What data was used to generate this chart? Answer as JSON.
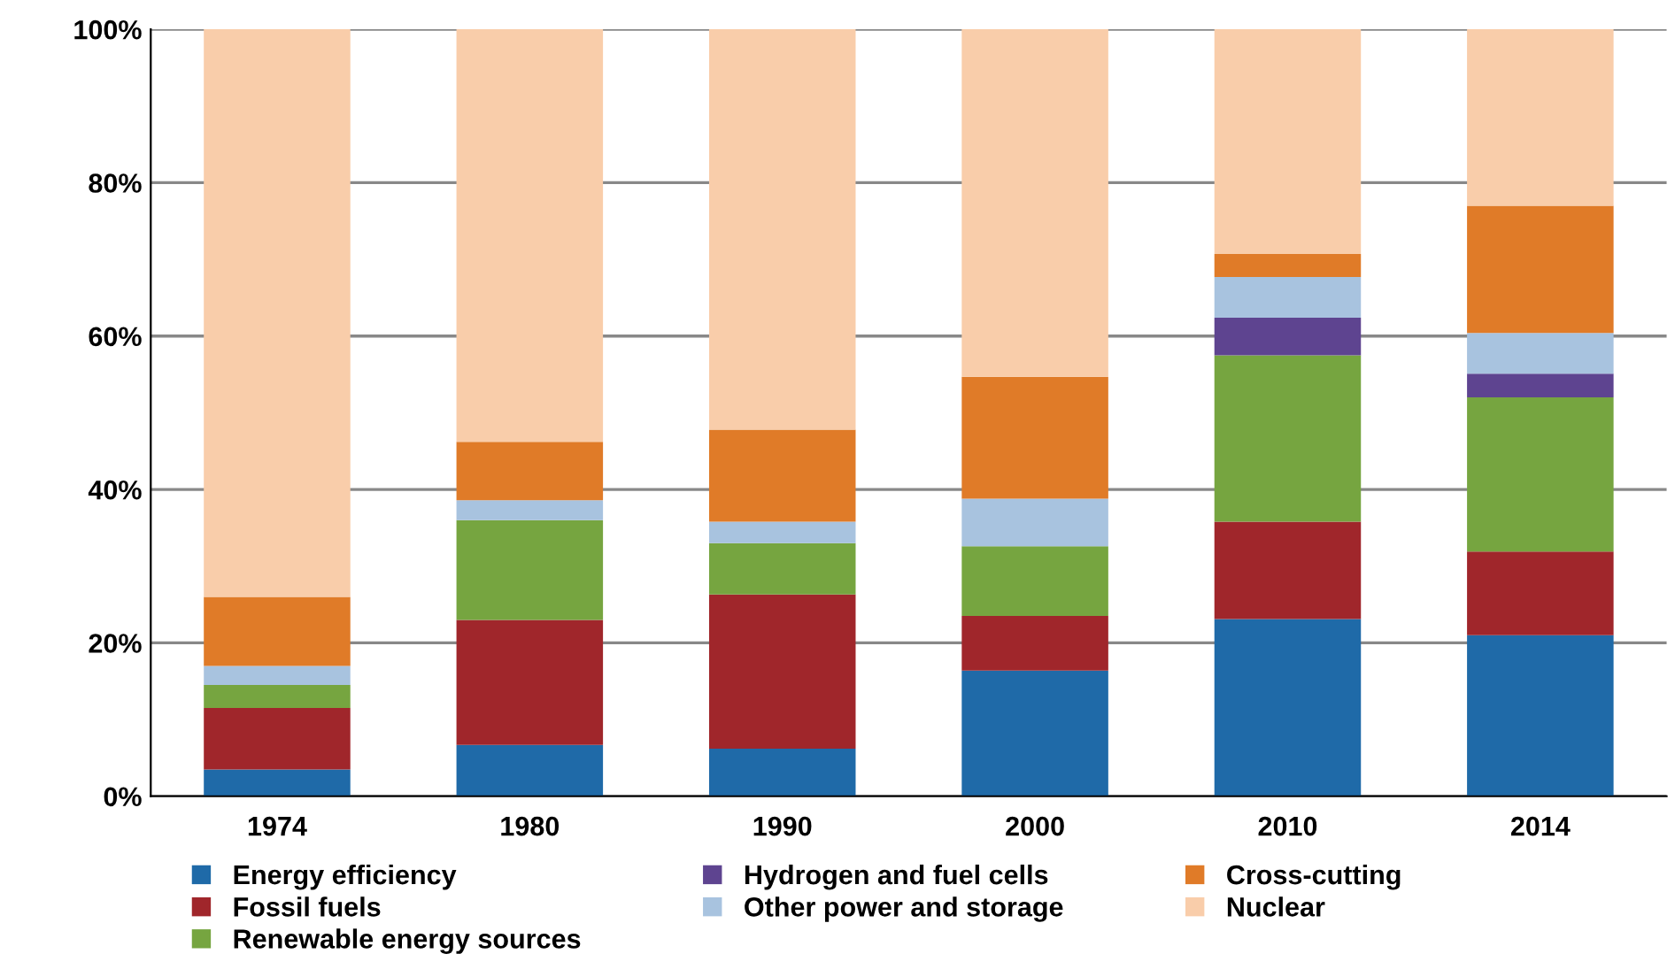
{
  "chart_data": {
    "type": "bar",
    "stacked": true,
    "categories": [
      "1974",
      "1980",
      "1990",
      "2000",
      "2010",
      "2014"
    ],
    "series": [
      {
        "name": "Energy efficiency",
        "color": "#1f6aa8",
        "values": [
          3.5,
          6.7,
          6.2,
          16.4,
          23.1,
          21.0
        ]
      },
      {
        "name": "Fossil fuels",
        "color": "#a0262b",
        "values": [
          8.0,
          16.3,
          20.1,
          7.1,
          12.7,
          10.9
        ]
      },
      {
        "name": "Renewable energy sources",
        "color": "#76a540",
        "values": [
          3.0,
          13.0,
          6.7,
          9.1,
          21.7,
          20.1
        ]
      },
      {
        "name": "Hydrogen and fuel cells",
        "color": "#5e4490",
        "values": [
          0,
          0,
          0,
          0,
          4.9,
          3.1
        ]
      },
      {
        "name": "Other power and storage",
        "color": "#a8c3df",
        "values": [
          2.5,
          2.6,
          2.8,
          6.2,
          5.3,
          5.3
        ]
      },
      {
        "name": "Cross-cutting",
        "color": "#e07b28",
        "values": [
          9.0,
          7.6,
          12.0,
          15.9,
          3.0,
          16.6
        ]
      },
      {
        "name": "Nuclear",
        "color": "#f9cdaa",
        "values": [
          74.0,
          53.8,
          52.2,
          45.3,
          29.3,
          23.1
        ]
      }
    ],
    "ylim": [
      0,
      100
    ],
    "yticks": [
      {
        "value": 0,
        "label": "0%"
      },
      {
        "value": 20,
        "label": "20%"
      },
      {
        "value": 40,
        "label": "40%"
      },
      {
        "value": 60,
        "label": "60%"
      },
      {
        "value": 80,
        "label": "80%"
      },
      {
        "value": 100,
        "label": "100%"
      }
    ],
    "grid": "y",
    "legend": "bottom"
  }
}
